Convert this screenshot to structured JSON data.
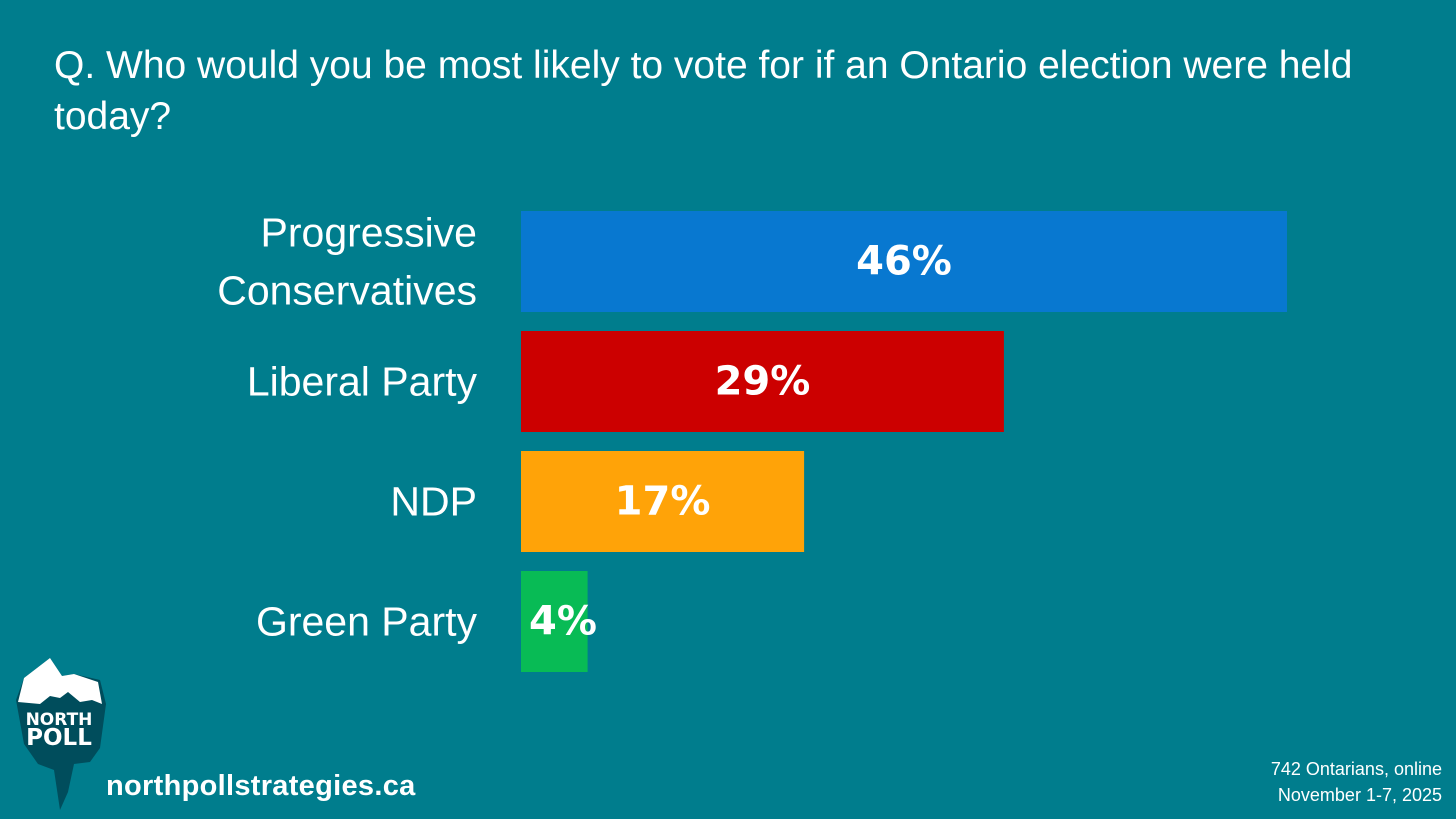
{
  "chart_data": {
    "type": "bar",
    "orientation": "horizontal",
    "title": "Q. Who would you be most likely to vote for if an Ontario election were held today?",
    "categories": [
      [
        "Progressive",
        "Conservatives"
      ],
      [
        "Liberal Party"
      ],
      [
        "NDP"
      ],
      [
        "Green Party"
      ]
    ],
    "values": [
      46,
      29,
      17,
      4
    ],
    "value_labels": [
      "46%",
      "29%",
      "17%",
      "4%"
    ],
    "colors": [
      "#0878d0",
      "#cc0000",
      "#ffa308",
      "#08bb55"
    ],
    "xlim": [
      0,
      46
    ],
    "xlabel": "",
    "ylabel": "",
    "grid": false
  },
  "footer": {
    "website": "northpollstrategies.ca",
    "sample": "742 Ontarians, online",
    "dates": "November 1-7, 2025"
  },
  "logo": {
    "line1": "NORTH",
    "line2": "POLL",
    "colors": {
      "berg": "#004d5c",
      "cap": "#ffffff"
    }
  }
}
